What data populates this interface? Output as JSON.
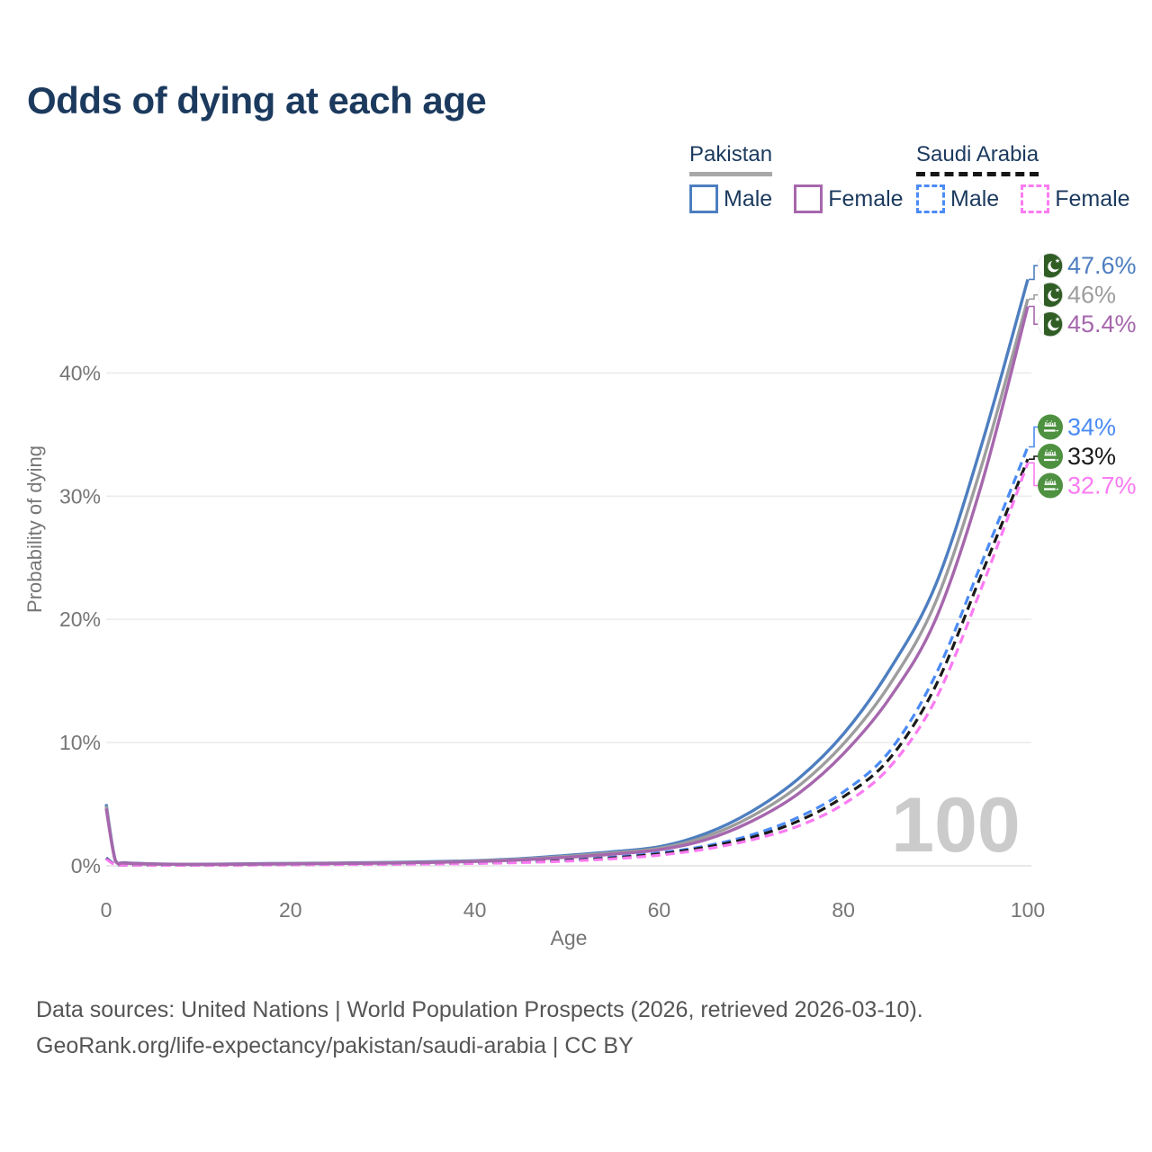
{
  "title": "Odds of dying at each age",
  "legend": {
    "groups": [
      {
        "country": "Pakistan",
        "line_style": "solid",
        "line_color": "#a8a8a8",
        "items": [
          {
            "label": "Male",
            "color": "#4d7ec0",
            "style": "solid"
          },
          {
            "label": "Female",
            "color": "#a667ad",
            "style": "solid"
          }
        ]
      },
      {
        "country": "Saudi Arabia",
        "line_style": "dashed",
        "line_color": "#161616",
        "items": [
          {
            "label": "Male",
            "color": "#4b8bf5",
            "style": "dashed"
          },
          {
            "label": "Female",
            "color": "#fb7bf2",
            "style": "dashed"
          }
        ]
      }
    ]
  },
  "chart_data": {
    "type": "line",
    "title": "Odds of dying at each age",
    "xlabel": "Age",
    "ylabel": "Probability of dying",
    "xlim": [
      0,
      100
    ],
    "ylim": [
      0,
      52
    ],
    "grid": true,
    "legend_position": "top-right",
    "x_ticks": [
      0,
      20,
      40,
      60,
      80,
      100
    ],
    "y_ticks": [
      {
        "value": 0,
        "label": "0%"
      },
      {
        "value": 10,
        "label": "10%"
      },
      {
        "value": 20,
        "label": "20%"
      },
      {
        "value": 30,
        "label": "30%"
      },
      {
        "value": 40,
        "label": "40%"
      }
    ],
    "watermark": "100",
    "ages": [
      0,
      1,
      2,
      5,
      10,
      15,
      20,
      25,
      30,
      35,
      40,
      45,
      50,
      55,
      60,
      65,
      70,
      75,
      80,
      85,
      90,
      95,
      100
    ],
    "series": [
      {
        "name": "Pakistan Male",
        "color": "#4d7ec0",
        "dash": "solid",
        "flag": "pk",
        "end_label": "47.6%",
        "values": [
          5.0,
          0.45,
          0.25,
          0.16,
          0.13,
          0.16,
          0.2,
          0.23,
          0.27,
          0.33,
          0.42,
          0.58,
          0.85,
          1.15,
          1.55,
          2.6,
          4.4,
          7.0,
          10.7,
          15.9,
          22.8,
          34.2,
          47.6
        ]
      },
      {
        "name": "Pakistan Both sexes",
        "color": "#9d9d9d",
        "dash": "solid",
        "flag": "pk",
        "end_label": "46%",
        "values": [
          4.85,
          0.42,
          0.23,
          0.15,
          0.12,
          0.14,
          0.18,
          0.21,
          0.25,
          0.3,
          0.39,
          0.53,
          0.77,
          1.05,
          1.42,
          2.35,
          4.0,
          6.4,
          9.9,
          14.7,
          21.4,
          32.5,
          46.0
        ]
      },
      {
        "name": "Pakistan Female",
        "color": "#a667ad",
        "dash": "solid",
        "flag": "pk",
        "end_label": "45.4%",
        "values": [
          4.65,
          0.4,
          0.22,
          0.14,
          0.11,
          0.13,
          0.16,
          0.19,
          0.22,
          0.27,
          0.35,
          0.48,
          0.69,
          0.95,
          1.3,
          2.1,
          3.6,
          5.8,
          9.1,
          13.6,
          20.0,
          31.0,
          45.4
        ]
      },
      {
        "name": "Saudi Arabia Male",
        "color": "#4b8bf5",
        "dash": "dashed",
        "flag": "sa",
        "end_label": "34%",
        "values": [
          0.65,
          0.1,
          0.07,
          0.05,
          0.05,
          0.08,
          0.11,
          0.13,
          0.15,
          0.18,
          0.23,
          0.32,
          0.47,
          0.7,
          1.05,
          1.6,
          2.5,
          3.9,
          6.0,
          9.3,
          15.5,
          24.6,
          34.0
        ]
      },
      {
        "name": "Saudi Arabia Both sexes",
        "color": "#1a1a1a",
        "dash": "dashed",
        "flag": "sa",
        "end_label": "33%",
        "values": [
          0.6,
          0.09,
          0.065,
          0.045,
          0.045,
          0.07,
          0.1,
          0.12,
          0.14,
          0.17,
          0.21,
          0.29,
          0.43,
          0.64,
          0.96,
          1.5,
          2.3,
          3.6,
          5.6,
          8.7,
          14.6,
          23.7,
          33.0
        ]
      },
      {
        "name": "Saudi Arabia Female",
        "color": "#fb7bf2",
        "dash": "dashed",
        "flag": "sa",
        "end_label": "32.7%",
        "values": [
          0.55,
          0.08,
          0.06,
          0.04,
          0.04,
          0.06,
          0.08,
          0.1,
          0.12,
          0.15,
          0.19,
          0.26,
          0.38,
          0.57,
          0.86,
          1.35,
          2.1,
          3.2,
          5.0,
          8.0,
          13.5,
          22.6,
          32.7
        ]
      }
    ]
  },
  "footer": {
    "line1": "Data sources: United Nations | World Population Prospects (2026, retrieved 2026-03-10).",
    "line2": "GeoRank.org/life-expectancy/pakistan/saudi-arabia | CC BY"
  }
}
